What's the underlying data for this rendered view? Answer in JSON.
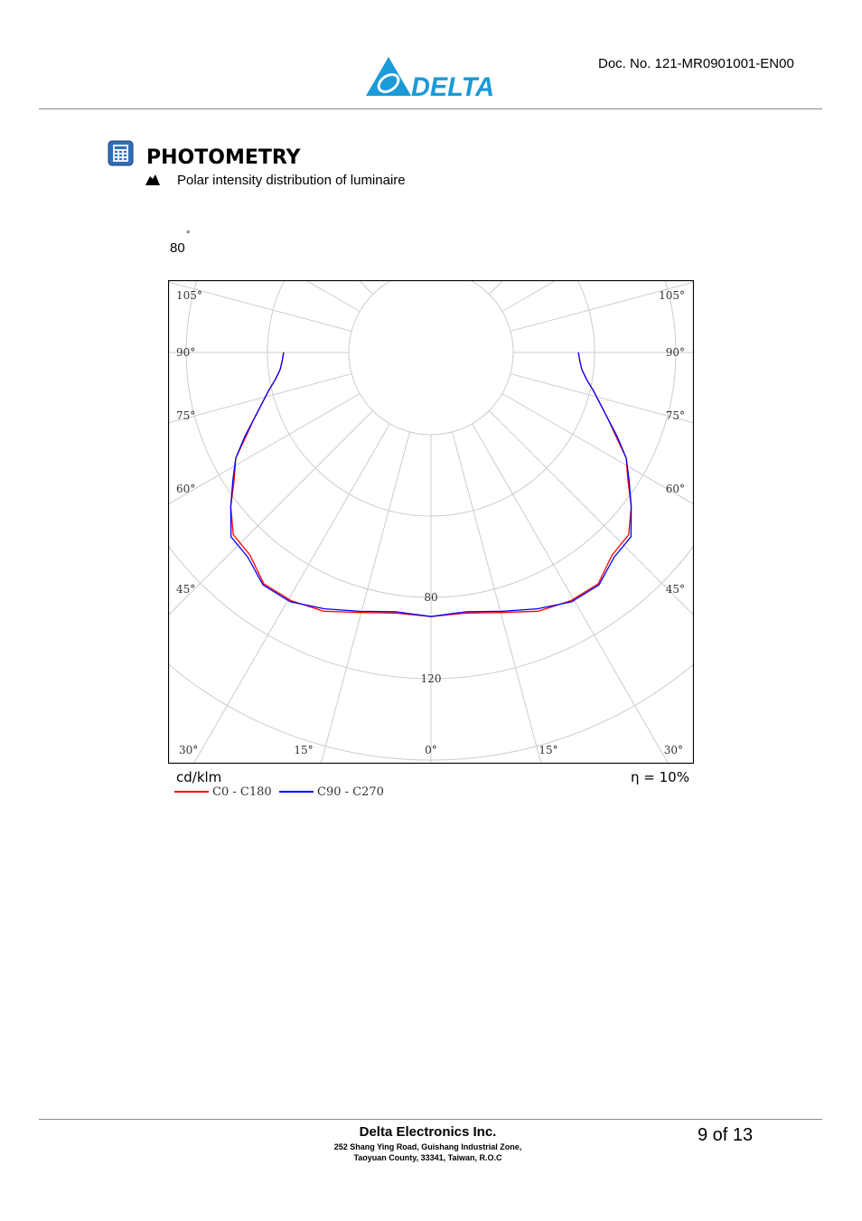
{
  "header": {
    "brand": "DELTA",
    "doc_no": "Doc. No. 121-MR0901001-EN00"
  },
  "section": {
    "title": "PHOTOMETRY",
    "bullet": "Polar intensity distribution of luminaire"
  },
  "stray_label": {
    "value": "80",
    "degree": "°"
  },
  "chart_data": {
    "type": "polar",
    "angle_labels_left": [
      "105°",
      "90°",
      "75°",
      "60°",
      "45°",
      "30°",
      "15°",
      "0°"
    ],
    "angle_labels_right": [
      "105°",
      "90°",
      "75°",
      "60°",
      "45°",
      "30°",
      "15°"
    ],
    "radial_ticks": [
      "80",
      "120"
    ],
    "unit": "cd/klm",
    "efficiency": "η = 10%",
    "series": [
      {
        "name": "C0 - C180",
        "color": "#ff0000",
        "angles_deg": [
          0,
          5,
          10,
          15,
          20,
          25,
          30,
          35,
          40,
          45,
          50,
          55,
          60,
          65,
          70,
          75,
          80,
          85,
          90
        ],
        "values": [
          169,
          167,
          169,
          172,
          169,
          162,
          145,
          136,
          119,
          102,
          90,
          75,
          64,
          55,
          48,
          42,
          38,
          36,
          35
        ]
      },
      {
        "name": "C90 - C270",
        "color": "#0000ff",
        "angles_deg": [
          0,
          5,
          10,
          15,
          20,
          25,
          30,
          35,
          40,
          45,
          50,
          55,
          60,
          65,
          70,
          75,
          80,
          85,
          90
        ],
        "values": [
          169,
          166,
          168,
          170,
          170,
          163,
          147,
          138,
          119,
          103,
          90,
          76,
          64,
          55,
          48,
          42,
          38,
          36,
          35
        ]
      }
    ]
  },
  "footer": {
    "company": "Delta Electronics Inc.",
    "address_line1": "252 Shang Ying Road, Guishang Industrial Zone,",
    "address_line2": "Taoyuan County, 33341, Taiwan, R.O.C",
    "page": "9  of 13"
  }
}
